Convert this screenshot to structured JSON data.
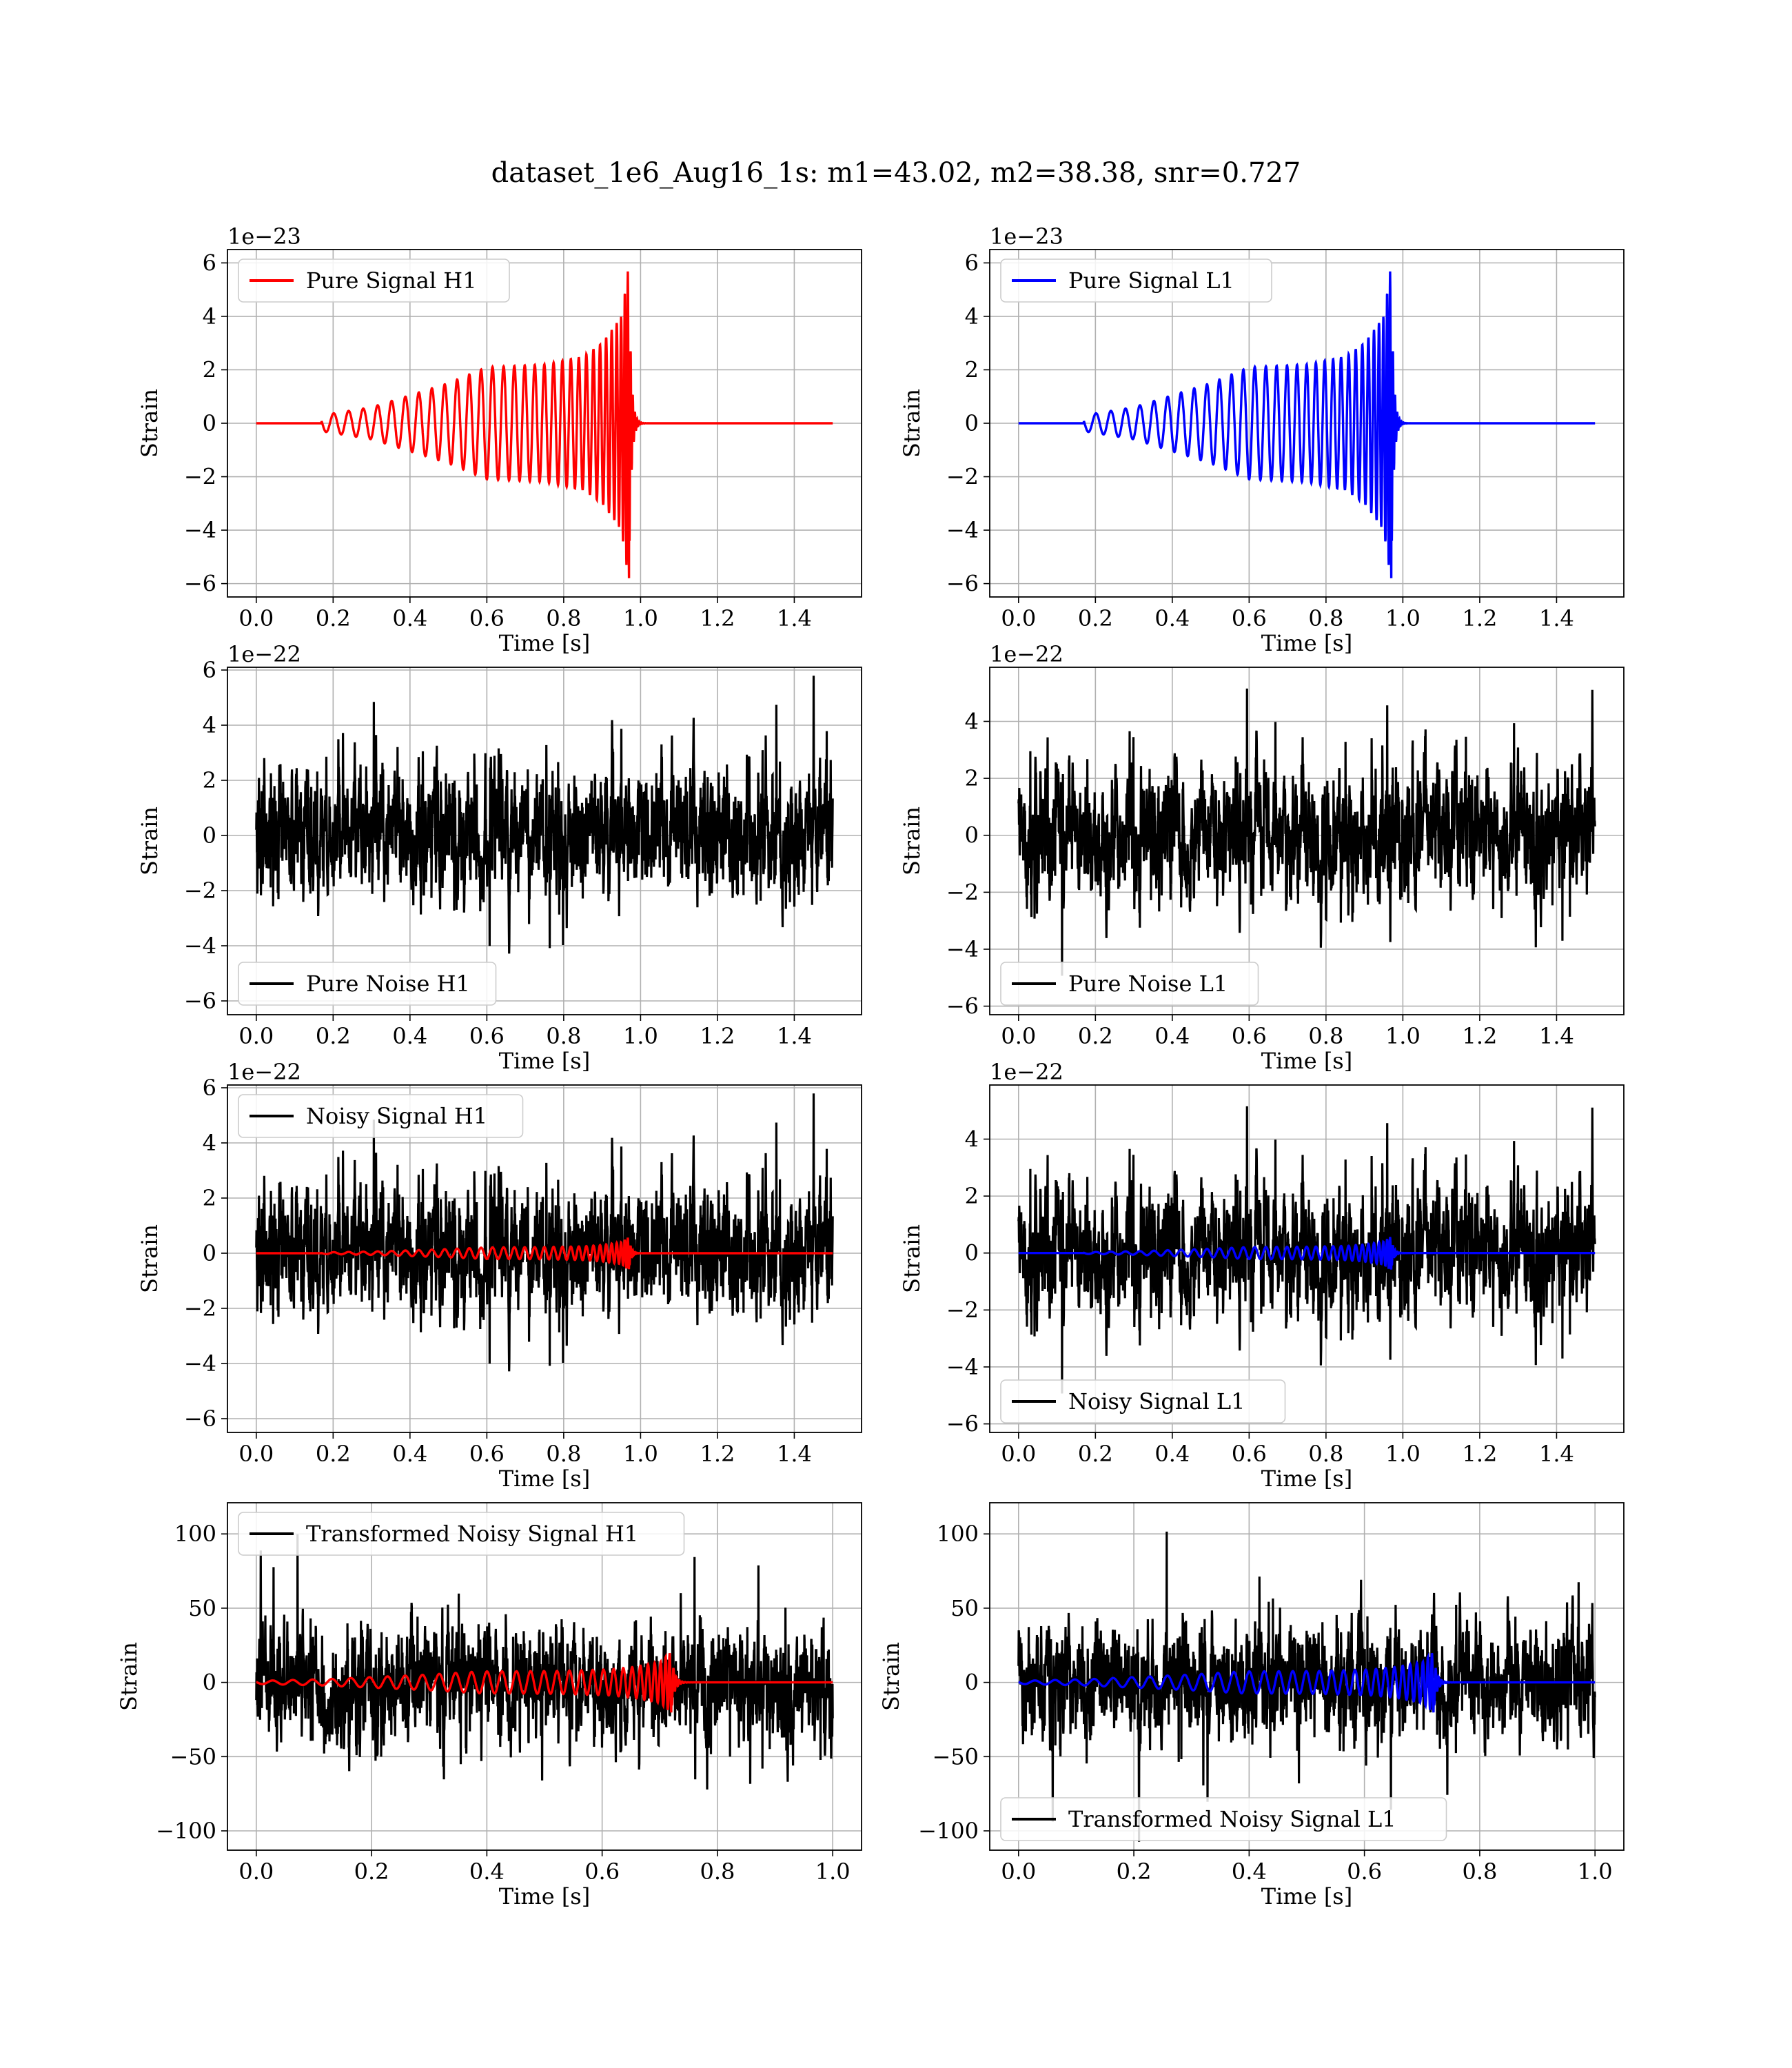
{
  "figure": {
    "title": "dataset_1e6_Aug16_1s: m1=43.02, m2=38.38, snr=0.727"
  },
  "colors": {
    "h1_signal": "#ff0000",
    "l1_signal": "#0000ff",
    "noise": "#000000",
    "grid": "#b0b0b0",
    "axes": "#000000",
    "background": "#ffffff"
  },
  "panels": [
    {
      "id": "pure-signal-h1",
      "ylabel": "Strain",
      "xlabel": "Time [s]",
      "offset_text": "1e−23",
      "legend": "Pure Signal H1",
      "legend_position": "upper-left",
      "grid": true,
      "xlim": [
        -0.075,
        1.575
      ],
      "ylim": [
        -6.5,
        6.5
      ],
      "xticks": [
        "0.0",
        "0.2",
        "0.4",
        "0.6",
        "0.8",
        "1.0",
        "1.2",
        "1.4"
      ],
      "yticks": [
        "−6",
        "−4",
        "−2",
        "0",
        "2",
        "4",
        "6"
      ]
    },
    {
      "id": "pure-signal-l1",
      "ylabel": "Strain",
      "xlabel": "Time [s]",
      "offset_text": "1e−23",
      "legend": "Pure Signal L1",
      "legend_position": "upper-left",
      "grid": true,
      "xlim": [
        -0.075,
        1.575
      ],
      "ylim": [
        -6.5,
        6.5
      ],
      "xticks": [
        "0.0",
        "0.2",
        "0.4",
        "0.6",
        "0.8",
        "1.0",
        "1.2",
        "1.4"
      ],
      "yticks": [
        "−6",
        "−4",
        "−2",
        "0",
        "2",
        "4",
        "6"
      ]
    },
    {
      "id": "pure-noise-h1",
      "ylabel": "Strain",
      "xlabel": "Time [s]",
      "offset_text": "1e−22",
      "legend": "Pure Noise H1",
      "legend_position": "lower-left",
      "grid": true,
      "xlim": [
        -0.075,
        1.575
      ],
      "ylim": [
        -6.5,
        6.1
      ],
      "xticks": [
        "0.0",
        "0.2",
        "0.4",
        "0.6",
        "0.8",
        "1.0",
        "1.2",
        "1.4"
      ],
      "yticks": [
        "−6",
        "−4",
        "−2",
        "0",
        "2",
        "4",
        "6"
      ]
    },
    {
      "id": "pure-noise-l1",
      "ylabel": "Strain",
      "xlabel": "Time [s]",
      "offset_text": "1e−22",
      "legend": "Pure Noise L1",
      "legend_position": "lower-left",
      "grid": true,
      "xlim": [
        -0.075,
        1.575
      ],
      "ylim": [
        -6.3,
        5.9
      ],
      "xticks": [
        "0.0",
        "0.2",
        "0.4",
        "0.6",
        "0.8",
        "1.0",
        "1.2",
        "1.4"
      ],
      "yticks": [
        "−6",
        "−4",
        "−2",
        "0",
        "2",
        "4"
      ]
    },
    {
      "id": "noisy-signal-h1",
      "ylabel": "Strain",
      "xlabel": "Time [s]",
      "offset_text": "1e−22",
      "legend": "Noisy Signal H1",
      "legend_position": "upper-left",
      "grid": true,
      "xlim": [
        -0.075,
        1.575
      ],
      "ylim": [
        -6.5,
        6.1
      ],
      "xticks": [
        "0.0",
        "0.2",
        "0.4",
        "0.6",
        "0.8",
        "1.0",
        "1.2",
        "1.4"
      ],
      "yticks": [
        "−6",
        "−4",
        "−2",
        "0",
        "2",
        "4",
        "6"
      ]
    },
    {
      "id": "noisy-signal-l1",
      "ylabel": "Strain",
      "xlabel": "Time [s]",
      "offset_text": "1e−22",
      "legend": "Noisy Signal L1",
      "legend_position": "lower-left",
      "grid": true,
      "xlim": [
        -0.075,
        1.575
      ],
      "ylim": [
        -6.3,
        5.9
      ],
      "xticks": [
        "0.0",
        "0.2",
        "0.4",
        "0.6",
        "0.8",
        "1.0",
        "1.2",
        "1.4"
      ],
      "yticks": [
        "−6",
        "−4",
        "−2",
        "0",
        "2",
        "4"
      ]
    },
    {
      "id": "transformed-noisy-signal-h1",
      "ylabel": "Strain",
      "xlabel": "Time [s]",
      "offset_text": "",
      "legend": "Transformed Noisy Signal H1",
      "legend_position": "upper-left",
      "grid": true,
      "xlim": [
        -0.05,
        1.05
      ],
      "ylim": [
        -113,
        121
      ],
      "xticks": [
        "0.0",
        "0.2",
        "0.4",
        "0.6",
        "0.8",
        "1.0"
      ],
      "yticks": [
        "−100",
        "−50",
        "0",
        "50",
        "100"
      ]
    },
    {
      "id": "transformed-noisy-signal-l1",
      "ylabel": "Strain",
      "xlabel": "Time [s]",
      "offset_text": "",
      "legend": "Transformed Noisy Signal L1",
      "legend_position": "lower-left",
      "grid": true,
      "xlim": [
        -0.05,
        1.05
      ],
      "ylim": [
        -113,
        121
      ],
      "xticks": [
        "0.0",
        "0.2",
        "0.4",
        "0.6",
        "0.8",
        "1.0"
      ],
      "yticks": [
        "−100",
        "−50",
        "0",
        "50",
        "100"
      ]
    }
  ],
  "chart_data": [
    {
      "type": "line",
      "title": "",
      "xlabel": "Time [s]",
      "ylabel": "Strain",
      "y_scale_factor": "1e−23",
      "series": [
        {
          "name": "Pure Signal H1",
          "color": "#ff0000"
        }
      ],
      "x_range": [
        0.0,
        1.5
      ],
      "signal_start": 0.17,
      "merger_time": 0.97,
      "amplitude_envelope": {
        "t": [
          0.17,
          0.3,
          0.5,
          0.6,
          0.75,
          0.85,
          0.9,
          0.95,
          0.97,
          1.0
        ],
        "amp": [
          0.3,
          0.6,
          1.5,
          2.1,
          2.2,
          2.5,
          3.0,
          4.0,
          5.8,
          0.0
        ]
      },
      "ylim": [
        -6.5,
        6.5
      ]
    },
    {
      "type": "line",
      "title": "",
      "xlabel": "Time [s]",
      "ylabel": "Strain",
      "y_scale_factor": "1e−23",
      "series": [
        {
          "name": "Pure Signal L1",
          "color": "#0000ff"
        }
      ],
      "x_range": [
        0.0,
        1.5
      ],
      "signal_start": 0.17,
      "merger_time": 0.97,
      "amplitude_envelope": {
        "t": [
          0.17,
          0.3,
          0.5,
          0.6,
          0.75,
          0.85,
          0.9,
          0.95,
          0.97,
          1.0
        ],
        "amp": [
          0.3,
          0.6,
          1.5,
          2.1,
          2.2,
          2.5,
          3.0,
          4.0,
          5.8,
          0.0
        ]
      },
      "ylim": [
        -6.5,
        6.5
      ]
    },
    {
      "type": "line",
      "xlabel": "Time [s]",
      "ylabel": "Strain",
      "y_scale_factor": "1e−22",
      "series": [
        {
          "name": "Pure Noise H1",
          "color": "#000000"
        }
      ],
      "x_range": [
        0.0,
        1.5
      ],
      "noise_band": [
        -4.5,
        4.5
      ],
      "ylim": [
        -6.5,
        6.1
      ]
    },
    {
      "type": "line",
      "xlabel": "Time [s]",
      "ylabel": "Strain",
      "y_scale_factor": "1e−22",
      "series": [
        {
          "name": "Pure Noise L1",
          "color": "#000000"
        }
      ],
      "x_range": [
        0.0,
        1.5
      ],
      "noise_band": [
        -4.5,
        4.5
      ],
      "ylim": [
        -6.3,
        5.9
      ]
    },
    {
      "type": "line",
      "xlabel": "Time [s]",
      "ylabel": "Strain",
      "y_scale_factor": "1e−22",
      "series": [
        {
          "name": "Noisy Signal H1",
          "color": "#000000"
        },
        {
          "name": "",
          "color": "#ff0000"
        }
      ],
      "x_range": [
        0.0,
        1.5
      ],
      "ylim": [
        -6.5,
        6.1
      ]
    },
    {
      "type": "line",
      "xlabel": "Time [s]",
      "ylabel": "Strain",
      "y_scale_factor": "1e−22",
      "series": [
        {
          "name": "Noisy Signal L1",
          "color": "#000000"
        },
        {
          "name": "",
          "color": "#0000ff"
        }
      ],
      "x_range": [
        0.0,
        1.5
      ],
      "ylim": [
        -6.3,
        5.9
      ]
    },
    {
      "type": "line",
      "xlabel": "Time [s]",
      "ylabel": "Strain",
      "series": [
        {
          "name": "Transformed Noisy Signal H1",
          "color": "#000000"
        },
        {
          "name": "",
          "color": "#ff0000"
        }
      ],
      "x_range": [
        0.0,
        1.0
      ],
      "merger_time": 0.72,
      "ylim": [
        -113,
        121
      ]
    },
    {
      "type": "line",
      "xlabel": "Time [s]",
      "ylabel": "Strain",
      "series": [
        {
          "name": "Transformed Noisy Signal L1",
          "color": "#000000"
        },
        {
          "name": "",
          "color": "#0000ff"
        }
      ],
      "x_range": [
        0.0,
        1.0
      ],
      "merger_time": 0.72,
      "ylim": [
        -113,
        121
      ]
    }
  ]
}
